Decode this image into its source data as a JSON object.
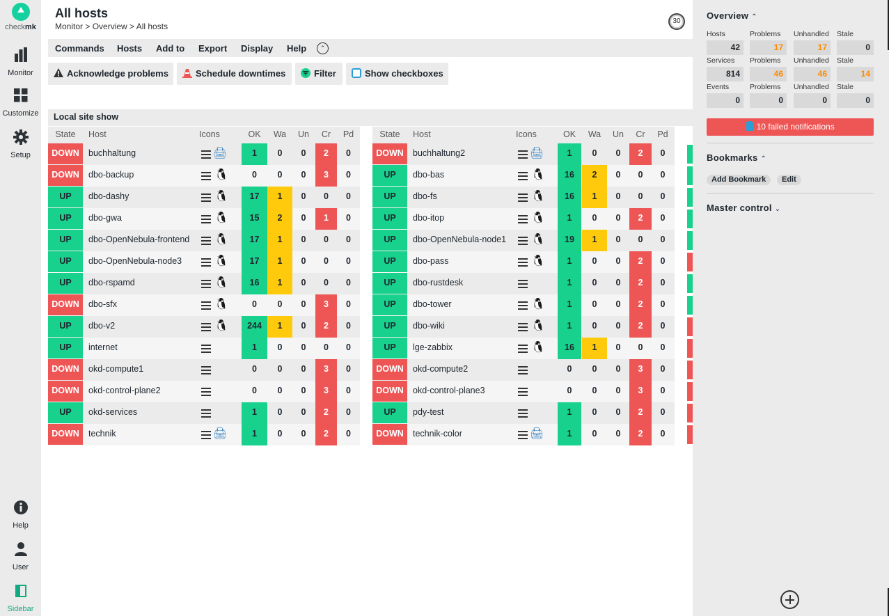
{
  "brand": {
    "logo_text_a": "check",
    "logo_text_b": "mk"
  },
  "nav": {
    "monitor": "Monitor",
    "customize": "Customize",
    "setup": "Setup",
    "help": "Help",
    "user": "User",
    "sidebar": "Sidebar"
  },
  "page": {
    "title": "All hosts",
    "breadcrumb": "Monitor > Overview > All hosts",
    "refresh_seconds": "30"
  },
  "menu": {
    "commands": "Commands",
    "hosts": "Hosts",
    "add_to": "Add to",
    "export": "Export",
    "display": "Display",
    "help": "Help"
  },
  "shortcuts": {
    "acknowledge": "Acknowledge problems",
    "downtimes": "Schedule downtimes",
    "filter": "Filter",
    "checkboxes": "Show checkboxes"
  },
  "table": {
    "title": "Local site show",
    "headers": {
      "state": "State",
      "host": "Host",
      "icons": "Icons",
      "ok": "OK",
      "wa": "Wa",
      "un": "Un",
      "cr": "Cr",
      "pd": "Pd"
    },
    "left": [
      {
        "state": "DOWN",
        "host": "buchhaltung",
        "icon": "printer",
        "ok": "1",
        "wa": "0",
        "un": "0",
        "cr": "2",
        "pd": "0"
      },
      {
        "state": "DOWN",
        "host": "dbo-backup",
        "icon": "linux",
        "ok": "0",
        "wa": "0",
        "un": "0",
        "cr": "3",
        "pd": "0"
      },
      {
        "state": "UP",
        "host": "dbo-dashy",
        "icon": "linux",
        "ok": "17",
        "wa": "1",
        "un": "0",
        "cr": "0",
        "pd": "0"
      },
      {
        "state": "UP",
        "host": "dbo-gwa",
        "icon": "linux",
        "ok": "15",
        "wa": "2",
        "un": "0",
        "cr": "1",
        "pd": "0"
      },
      {
        "state": "UP",
        "host": "dbo-OpenNebula-frontend",
        "icon": "linux",
        "ok": "17",
        "wa": "1",
        "un": "0",
        "cr": "0",
        "pd": "0"
      },
      {
        "state": "UP",
        "host": "dbo-OpenNebula-node3",
        "icon": "linux",
        "ok": "17",
        "wa": "1",
        "un": "0",
        "cr": "0",
        "pd": "0"
      },
      {
        "state": "UP",
        "host": "dbo-rspamd",
        "icon": "linux",
        "ok": "16",
        "wa": "1",
        "un": "0",
        "cr": "0",
        "pd": "0"
      },
      {
        "state": "DOWN",
        "host": "dbo-sfx",
        "icon": "linux",
        "ok": "0",
        "wa": "0",
        "un": "0",
        "cr": "3",
        "pd": "0"
      },
      {
        "state": "UP",
        "host": "dbo-v2",
        "icon": "linux",
        "ok": "244",
        "wa": "1",
        "un": "0",
        "cr": "2",
        "pd": "0"
      },
      {
        "state": "UP",
        "host": "internet",
        "icon": "",
        "ok": "1",
        "wa": "0",
        "un": "0",
        "cr": "0",
        "pd": "0"
      },
      {
        "state": "DOWN",
        "host": "okd-compute1",
        "icon": "",
        "ok": "0",
        "wa": "0",
        "un": "0",
        "cr": "3",
        "pd": "0"
      },
      {
        "state": "DOWN",
        "host": "okd-control-plane2",
        "icon": "",
        "ok": "0",
        "wa": "0",
        "un": "0",
        "cr": "3",
        "pd": "0"
      },
      {
        "state": "UP",
        "host": "okd-services",
        "icon": "",
        "ok": "1",
        "wa": "0",
        "un": "0",
        "cr": "2",
        "pd": "0"
      },
      {
        "state": "DOWN",
        "host": "technik",
        "icon": "printer",
        "ok": "1",
        "wa": "0",
        "un": "0",
        "cr": "2",
        "pd": "0"
      }
    ],
    "right": [
      {
        "state": "DOWN",
        "host": "buchhaltung2",
        "icon": "printer",
        "ok": "1",
        "wa": "0",
        "un": "0",
        "cr": "2",
        "pd": "0"
      },
      {
        "state": "UP",
        "host": "dbo-bas",
        "icon": "linux",
        "ok": "16",
        "wa": "2",
        "un": "0",
        "cr": "0",
        "pd": "0"
      },
      {
        "state": "UP",
        "host": "dbo-fs",
        "icon": "linux",
        "ok": "16",
        "wa": "1",
        "un": "0",
        "cr": "0",
        "pd": "0"
      },
      {
        "state": "UP",
        "host": "dbo-itop",
        "icon": "linux",
        "ok": "1",
        "wa": "0",
        "un": "0",
        "cr": "2",
        "pd": "0"
      },
      {
        "state": "UP",
        "host": "dbo-OpenNebula-node1",
        "icon": "linux",
        "ok": "19",
        "wa": "1",
        "un": "0",
        "cr": "0",
        "pd": "0"
      },
      {
        "state": "UP",
        "host": "dbo-pass",
        "icon": "linux",
        "ok": "1",
        "wa": "0",
        "un": "0",
        "cr": "2",
        "pd": "0"
      },
      {
        "state": "UP",
        "host": "dbo-rustdesk",
        "icon": "",
        "ok": "1",
        "wa": "0",
        "un": "0",
        "cr": "2",
        "pd": "0"
      },
      {
        "state": "UP",
        "host": "dbo-tower",
        "icon": "linux",
        "ok": "1",
        "wa": "0",
        "un": "0",
        "cr": "2",
        "pd": "0"
      },
      {
        "state": "UP",
        "host": "dbo-wiki",
        "icon": "linux",
        "ok": "1",
        "wa": "0",
        "un": "0",
        "cr": "2",
        "pd": "0"
      },
      {
        "state": "UP",
        "host": "lge-zabbix",
        "icon": "linux",
        "ok": "16",
        "wa": "1",
        "un": "0",
        "cr": "0",
        "pd": "0"
      },
      {
        "state": "DOWN",
        "host": "okd-compute2",
        "icon": "",
        "ok": "0",
        "wa": "0",
        "un": "0",
        "cr": "3",
        "pd": "0"
      },
      {
        "state": "DOWN",
        "host": "okd-control-plane3",
        "icon": "",
        "ok": "0",
        "wa": "0",
        "un": "0",
        "cr": "3",
        "pd": "0"
      },
      {
        "state": "UP",
        "host": "pdy-test",
        "icon": "",
        "ok": "1",
        "wa": "0",
        "un": "0",
        "cr": "2",
        "pd": "0"
      },
      {
        "state": "DOWN",
        "host": "technik-color",
        "icon": "printer",
        "ok": "1",
        "wa": "0",
        "un": "0",
        "cr": "2",
        "pd": "0"
      }
    ],
    "third_column_states": [
      "UP",
      "UP",
      "UP",
      "UP",
      "UP",
      "DOWN",
      "UP",
      "UP",
      "DOWN",
      "DOWN",
      "DOWN",
      "DOWN",
      "DOWN",
      "DOWN"
    ]
  },
  "sidebar": {
    "overview": {
      "title": "Overview",
      "rows": [
        {
          "label": "Hosts",
          "value": "42",
          "problems_label": "Problems",
          "problems": "17",
          "unhandled_label": "Unhandled",
          "unhandled": "17",
          "stale_label": "Stale",
          "stale": "0"
        },
        {
          "label": "Services",
          "value": "814",
          "problems_label": "Problems",
          "problems": "46",
          "unhandled_label": "Unhandled",
          "unhandled": "46",
          "stale_label": "Stale",
          "stale": "14"
        },
        {
          "label": "Events",
          "value": "0",
          "problems_label": "Problems",
          "problems": "0",
          "unhandled_label": "Unhandled",
          "unhandled": "0",
          "stale_label": "Stale",
          "stale": "0"
        }
      ],
      "failed_notifications": "10 failed notifications"
    },
    "bookmarks": {
      "title": "Bookmarks",
      "add": "Add Bookmark",
      "edit": "Edit"
    },
    "master_control": {
      "title": "Master control"
    }
  },
  "colors": {
    "ok": "#17d18d",
    "warn": "#ffca0b",
    "crit": "#ee5555",
    "unhandled": "#ff8a00"
  }
}
